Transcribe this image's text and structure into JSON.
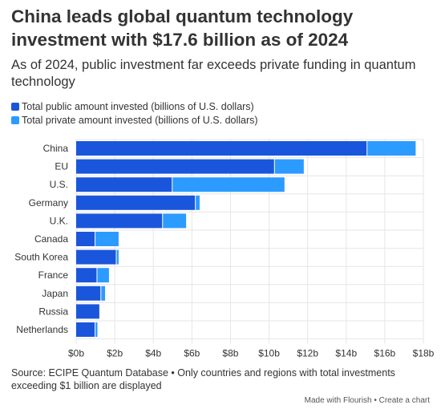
{
  "title": "China leads global quantum technology investment with $17.6 billion as of 2024",
  "subtitle": "As of 2024, public investment far exceeds private funding in quantum technology",
  "source_note": "Source: ECIPE Quantum Database • Only countries and regions with total investments exceeding $1 billion are displayed",
  "credit": {
    "made_with": "Made with Flourish",
    "separator": "•",
    "create": "Create a chart"
  },
  "colors": {
    "public": "#1a56db",
    "private": "#2b9bff",
    "grid": "#e6e6e6",
    "text": "#333333"
  },
  "chart_data": {
    "type": "bar",
    "orientation": "horizontal",
    "stacked": true,
    "categories": [
      "China",
      "EU",
      "U.S.",
      "Germany",
      "U.K.",
      "Canada",
      "South Korea",
      "France",
      "Japan",
      "Russia",
      "Netherlands"
    ],
    "series": [
      {
        "name": "Total public amount invested (billions of U.S. dollars)",
        "values": [
          15.1,
          10.3,
          5.0,
          6.2,
          4.5,
          1.0,
          2.1,
          1.1,
          1.3,
          1.2,
          1.0
        ]
      },
      {
        "name": "Total private amount invested (billions of U.S. dollars)",
        "values": [
          2.5,
          1.5,
          5.8,
          0.2,
          1.2,
          1.2,
          0.1,
          0.6,
          0.2,
          0.0,
          0.1
        ]
      }
    ],
    "x_ticks": [
      0,
      2,
      4,
      6,
      8,
      10,
      12,
      14,
      16,
      18
    ],
    "x_tick_labels": [
      "$0b",
      "$2b",
      "$4b",
      "$6b",
      "$8b",
      "$10b",
      "$12b",
      "$14b",
      "$16b",
      "$18b"
    ],
    "xlim": [
      0,
      18
    ],
    "grid": true,
    "legend_position": "top-left"
  }
}
